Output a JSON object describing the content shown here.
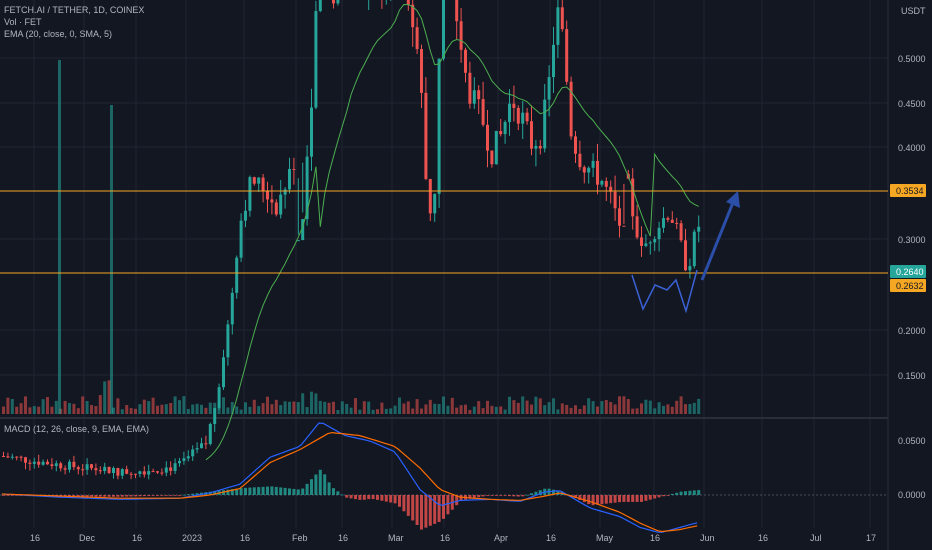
{
  "header": {
    "symbol": "FETCH.AI / TETHER, 1D, COINEX",
    "volume": "Vol · FET",
    "ema": "EMA (20, close, 0, SMA, 5)"
  },
  "macd_legend": "MACD (12, 26, close, 9, EMA, EMA)",
  "currency": "USDT",
  "price_axis": [
    {
      "value": 0.5,
      "label": "0.5000"
    },
    {
      "value": 0.45,
      "label": "0.4500"
    },
    {
      "value": 0.4,
      "label": "0.4000"
    },
    {
      "value": 0.3,
      "label": "0.3000"
    },
    {
      "value": 0.2,
      "label": "0.2000"
    },
    {
      "value": 0.15,
      "label": "0.1500"
    }
  ],
  "macd_axis": [
    {
      "value": 0.05,
      "label": "0.0500"
    },
    {
      "value": 0.0,
      "label": "0.0000"
    }
  ],
  "time_axis": [
    "16",
    "Dec",
    "16",
    "2023",
    "16",
    "Feb",
    "16",
    "Mar",
    "16",
    "Apr",
    "16",
    "May",
    "16",
    "Jun",
    "16",
    "Jul",
    "17"
  ],
  "levels": [
    {
      "value": 0.3534,
      "label": "0.3534",
      "color": "#f5a623"
    },
    {
      "value": 0.2632,
      "label": "0.2632",
      "color": "#f5a623"
    }
  ],
  "current_price": {
    "value": 0.264,
    "label": "0.2640",
    "color": "#26a69a"
  },
  "colors": {
    "up": "#26a69a",
    "down": "#ef5350",
    "ema": "#4caf50",
    "macd": "#2962ff",
    "signal": "#ff6d00",
    "drawing": "#2b4fa8"
  }
}
